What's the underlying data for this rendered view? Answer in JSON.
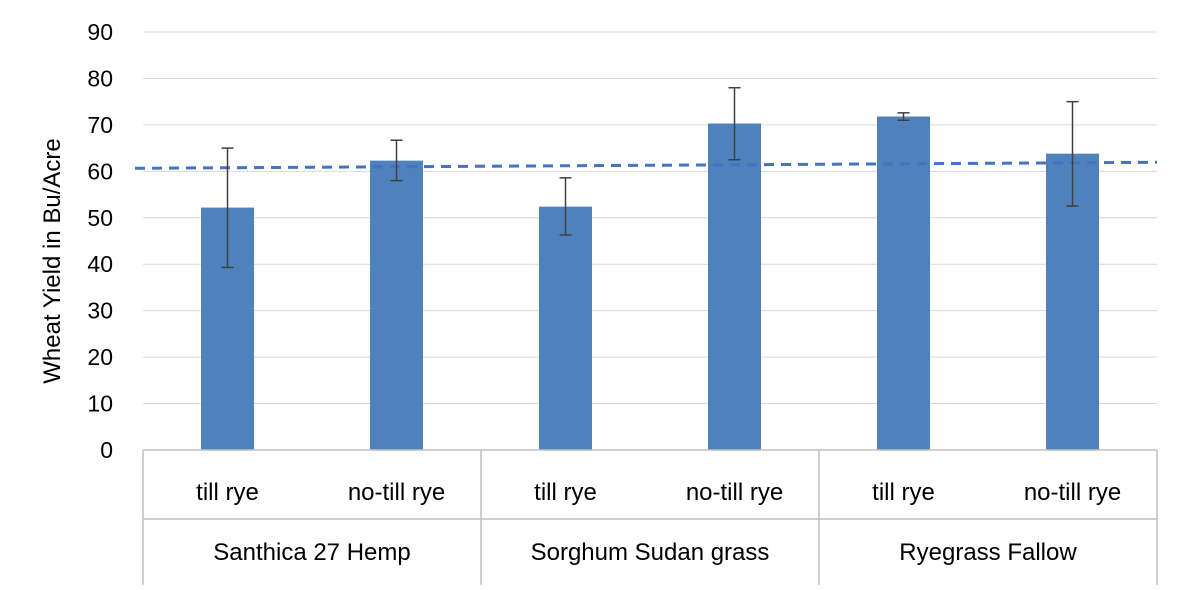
{
  "chart_data": {
    "type": "bar",
    "title": "",
    "ylabel": "Wheat Yield in Bu/Acre",
    "xlabel": "",
    "ylim": [
      0,
      90
    ],
    "yticks": [
      0,
      10,
      20,
      30,
      40,
      50,
      60,
      70,
      80,
      90
    ],
    "grid": true,
    "categories": [
      {
        "label": "till rye",
        "group": "Santhica 27 Hemp"
      },
      {
        "label": "no-till rye",
        "group": "Santhica 27 Hemp"
      },
      {
        "label": "till rye",
        "group": "Sorghum Sudan grass"
      },
      {
        "label": "no-till rye",
        "group": "Sorghum Sudan grass"
      },
      {
        "label": "till rye",
        "group": "Ryegrass Fallow"
      },
      {
        "label": "no-till rye",
        "group": "Ryegrass Fallow"
      }
    ],
    "groups": [
      "Santhica 27 Hemp",
      "Sorghum Sudan grass",
      "Ryegrass Fallow"
    ],
    "values": [
      52.2,
      62.3,
      52.4,
      70.3,
      71.8,
      63.8
    ],
    "error_low": [
      39.3,
      58.0,
      46.3,
      62.5,
      71.0,
      52.5
    ],
    "error_high": [
      65.0,
      66.7,
      58.6,
      78.0,
      72.6,
      75.0
    ],
    "reference_line": {
      "value": 61.3,
      "style": "dashed"
    },
    "colors": {
      "bar": "#4f81bd",
      "error_bar": "#404040",
      "reference_line": "#4472c4",
      "grid": "#d9d9d9",
      "axis": "#bfbfbf"
    }
  }
}
